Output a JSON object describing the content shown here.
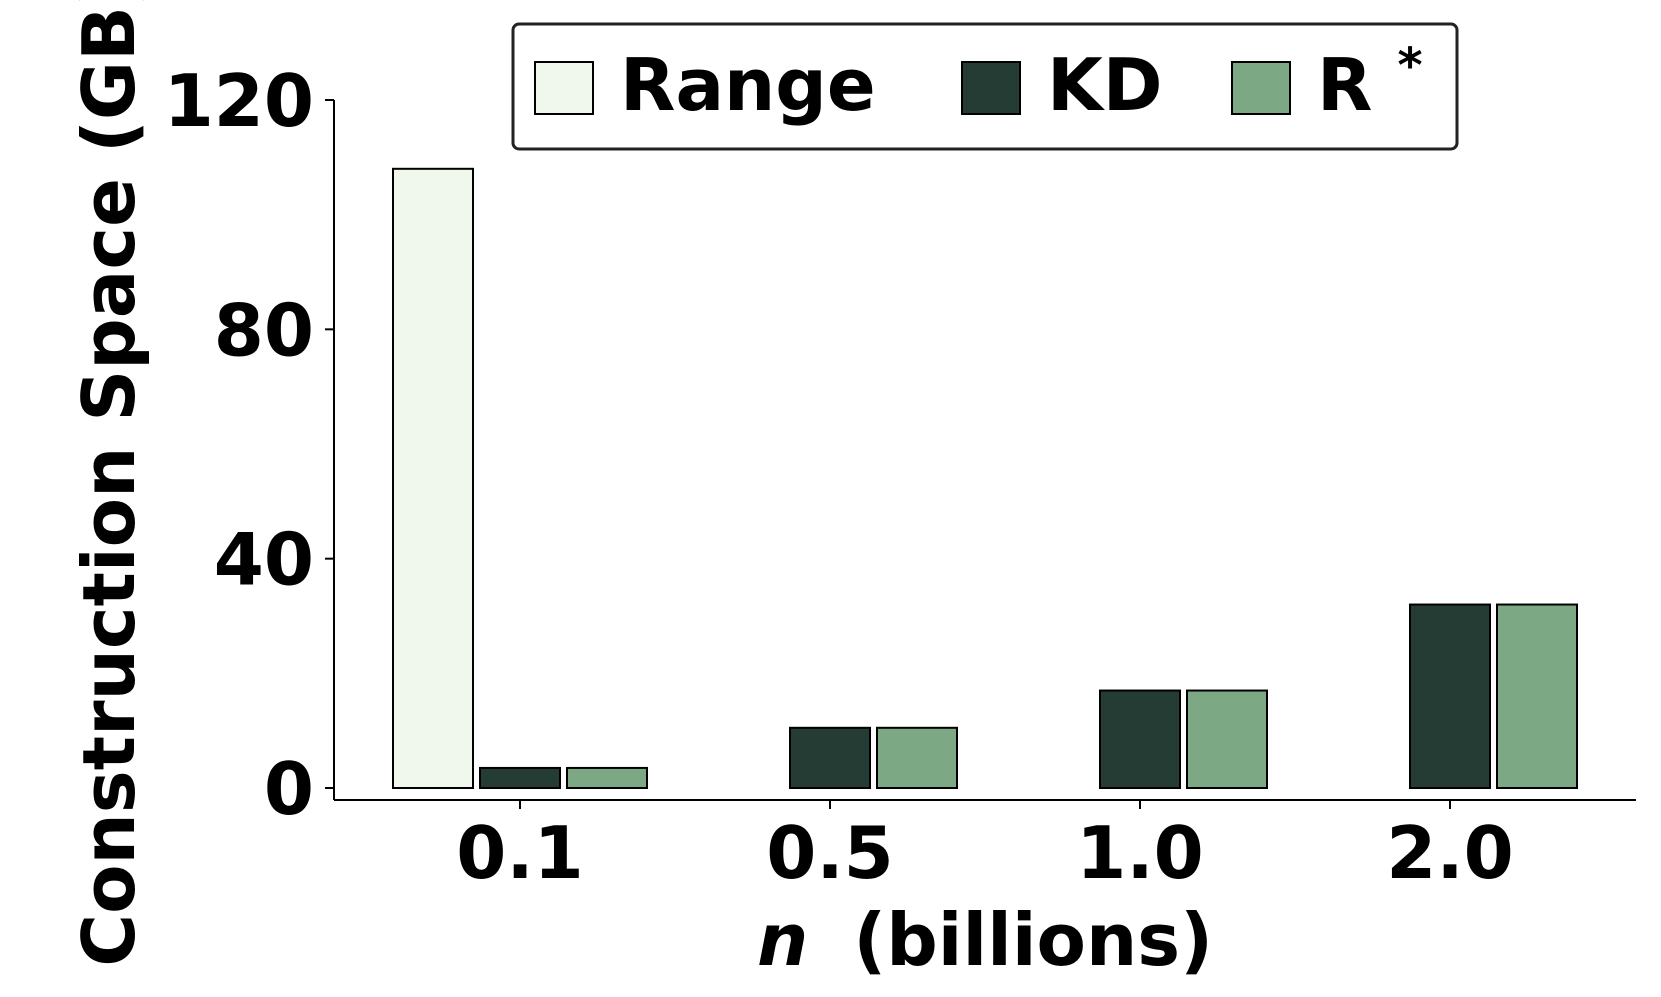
{
  "chart_data": {
    "type": "bar",
    "categories": [
      "0.1",
      "0.5",
      "1.0",
      "2.0"
    ],
    "series": [
      {
        "name": "Range",
        "values": [
          108,
          null,
          null,
          null
        ],
        "color": "#f0f7ec"
      },
      {
        "name": "KD",
        "values": [
          3.5,
          10.5,
          17,
          32
        ],
        "color": "#243c33"
      },
      {
        "name": "R*",
        "values": [
          3.5,
          10.5,
          17,
          32
        ],
        "color": "#7ca983"
      }
    ],
    "title": "",
    "xlabel_italic": "n",
    "xlabel_rest": "(billions)",
    "ylabel": "Construction Space (GB)",
    "ylim": [
      -2,
      120
    ],
    "yticks": [
      "0",
      "40",
      "80",
      "120"
    ],
    "grid": false,
    "legend": {
      "placement": "top",
      "items": [
        {
          "label": "Range",
          "color": "#f0f7ec"
        },
        {
          "label": "KD",
          "color": "#243c33"
        },
        {
          "label_base": "R",
          "label_sup": "*",
          "color": "#7ca983"
        }
      ]
    }
  }
}
